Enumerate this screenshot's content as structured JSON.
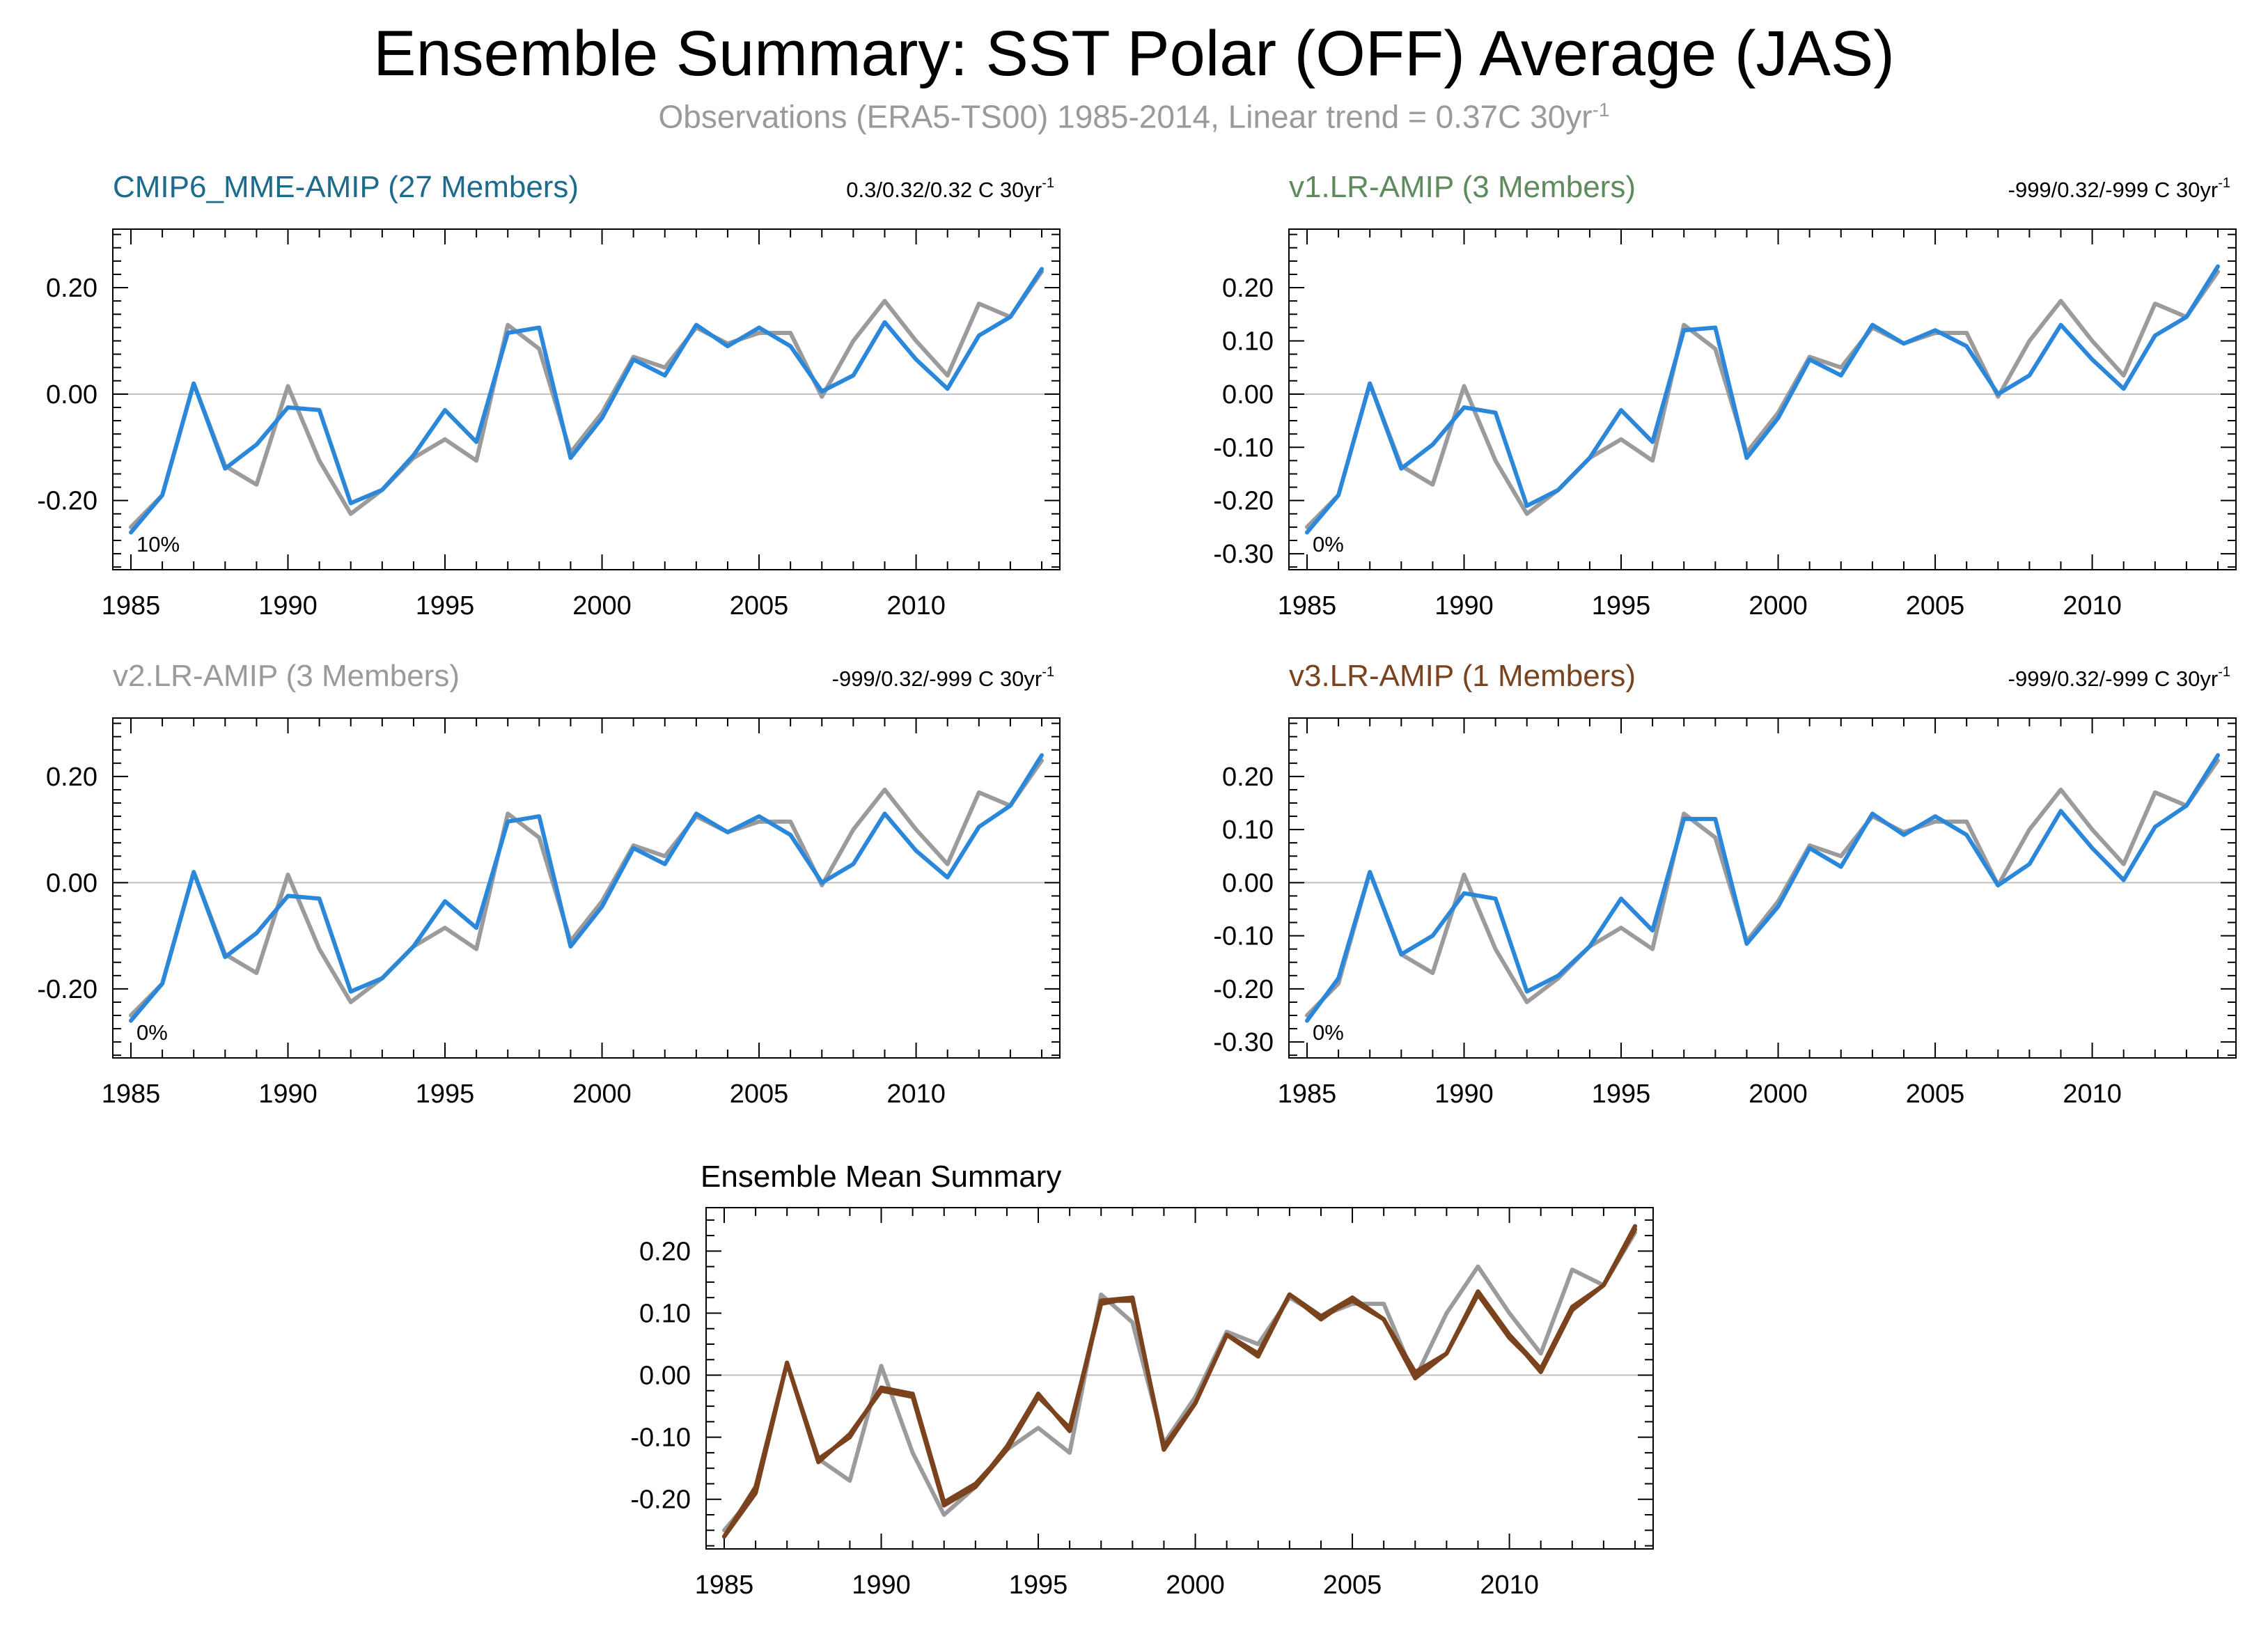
{
  "title": "Ensemble Summary: SST Polar (OFF) Average (JAS)",
  "subtitle": "Observations (ERA5-TS00) 1985-2014, Linear trend = 0.37C 30yr",
  "subtitle_sup": "-1",
  "colors": {
    "observations": "#9b9b9b",
    "model": "#2b87da",
    "ensemble_mean": "#7a431e",
    "zero_line": "#c0c0c0",
    "frame": "#000000"
  },
  "chart_data": [
    {
      "type": "line",
      "title": "CMIP6_MME-AMIP (27 Members)",
      "title_color": "#1d6b8c",
      "trend_text": "0.3/0.32/0.32 C 30yr",
      "trend_sup": "-1",
      "pct": "10%",
      "ylim": [
        -0.33,
        0.31
      ],
      "yticks": [
        -0.2,
        0.0,
        0.2
      ],
      "ytick_labels": [
        "-0.20",
        "0.00",
        "0.20"
      ],
      "xlim": [
        1985,
        2014
      ],
      "xticks": [
        1985,
        1990,
        1995,
        2000,
        2005,
        2010
      ],
      "grid": false,
      "x": [
        1985,
        1986,
        1987,
        1988,
        1989,
        1990,
        1991,
        1992,
        1993,
        1994,
        1995,
        1996,
        1997,
        1998,
        1999,
        2000,
        2001,
        2002,
        2003,
        2004,
        2005,
        2006,
        2007,
        2008,
        2009,
        2010,
        2011,
        2012,
        2013,
        2014
      ],
      "series": [
        {
          "name": "Observations (ERA5-TS00)",
          "role": "obs",
          "values": [
            -0.25,
            -0.19,
            0.02,
            -0.135,
            -0.17,
            0.015,
            -0.125,
            -0.225,
            -0.18,
            -0.12,
            -0.085,
            -0.125,
            0.13,
            0.085,
            -0.11,
            -0.035,
            0.07,
            0.05,
            0.125,
            0.095,
            0.115,
            0.115,
            -0.005,
            0.1,
            0.175,
            0.1,
            0.035,
            0.17,
            0.145,
            0.23
          ]
        },
        {
          "name": "CMIP6_MME-AMIP",
          "role": "model",
          "values": [
            -0.26,
            -0.19,
            0.02,
            -0.14,
            -0.095,
            -0.025,
            -0.03,
            -0.205,
            -0.18,
            -0.115,
            -0.03,
            -0.09,
            0.115,
            0.125,
            -0.12,
            -0.045,
            0.065,
            0.035,
            0.13,
            0.09,
            0.125,
            0.09,
            0.005,
            0.035,
            0.135,
            0.065,
            0.01,
            0.11,
            0.145,
            0.235
          ]
        }
      ]
    },
    {
      "type": "line",
      "title": "v1.LR-AMIP (3 Members)",
      "title_color": "#5e8a5e",
      "trend_text": "-999/0.32/-999 C 30yr",
      "trend_sup": "-1",
      "pct": "0%",
      "ylim": [
        -0.33,
        0.31
      ],
      "yticks": [
        -0.3,
        -0.2,
        -0.1,
        0.0,
        0.1,
        0.2
      ],
      "ytick_labels": [
        "-0.30",
        "-0.20",
        "-0.10",
        "0.00",
        "0.10",
        "0.20"
      ],
      "xlim": [
        1985,
        2014
      ],
      "xticks": [
        1985,
        1990,
        1995,
        2000,
        2005,
        2010
      ],
      "grid": false,
      "x": [
        1985,
        1986,
        1987,
        1988,
        1989,
        1990,
        1991,
        1992,
        1993,
        1994,
        1995,
        1996,
        1997,
        1998,
        1999,
        2000,
        2001,
        2002,
        2003,
        2004,
        2005,
        2006,
        2007,
        2008,
        2009,
        2010,
        2011,
        2012,
        2013,
        2014
      ],
      "series": [
        {
          "name": "Observations (ERA5-TS00)",
          "role": "obs",
          "values": [
            -0.25,
            -0.19,
            0.02,
            -0.135,
            -0.17,
            0.015,
            -0.125,
            -0.225,
            -0.18,
            -0.12,
            -0.085,
            -0.125,
            0.13,
            0.085,
            -0.11,
            -0.035,
            0.07,
            0.05,
            0.125,
            0.095,
            0.115,
            0.115,
            -0.005,
            0.1,
            0.175,
            0.1,
            0.035,
            0.17,
            0.145,
            0.23
          ]
        },
        {
          "name": "v1.LR-AMIP",
          "role": "model",
          "values": [
            -0.26,
            -0.19,
            0.02,
            -0.14,
            -0.095,
            -0.025,
            -0.035,
            -0.21,
            -0.18,
            -0.12,
            -0.03,
            -0.09,
            0.12,
            0.125,
            -0.12,
            -0.045,
            0.065,
            0.035,
            0.13,
            0.095,
            0.12,
            0.09,
            0.0,
            0.035,
            0.13,
            0.065,
            0.01,
            0.11,
            0.145,
            0.24
          ]
        }
      ]
    },
    {
      "type": "line",
      "title": "v2.LR-AMIP (3 Members)",
      "title_color": "#9a9a9a",
      "trend_text": "-999/0.32/-999 C 30yr",
      "trend_sup": "-1",
      "pct": "0%",
      "ylim": [
        -0.33,
        0.31
      ],
      "yticks": [
        -0.2,
        0.0,
        0.2
      ],
      "ytick_labels": [
        "-0.20",
        "0.00",
        "0.20"
      ],
      "xlim": [
        1985,
        2014
      ],
      "xticks": [
        1985,
        1990,
        1995,
        2000,
        2005,
        2010
      ],
      "grid": false,
      "x": [
        1985,
        1986,
        1987,
        1988,
        1989,
        1990,
        1991,
        1992,
        1993,
        1994,
        1995,
        1996,
        1997,
        1998,
        1999,
        2000,
        2001,
        2002,
        2003,
        2004,
        2005,
        2006,
        2007,
        2008,
        2009,
        2010,
        2011,
        2012,
        2013,
        2014
      ],
      "series": [
        {
          "name": "Observations (ERA5-TS00)",
          "role": "obs",
          "values": [
            -0.25,
            -0.19,
            0.02,
            -0.135,
            -0.17,
            0.015,
            -0.125,
            -0.225,
            -0.18,
            -0.12,
            -0.085,
            -0.125,
            0.13,
            0.085,
            -0.11,
            -0.035,
            0.07,
            0.05,
            0.125,
            0.095,
            0.115,
            0.115,
            -0.005,
            0.1,
            0.175,
            0.1,
            0.035,
            0.17,
            0.145,
            0.23
          ]
        },
        {
          "name": "v2.LR-AMIP",
          "role": "model",
          "values": [
            -0.26,
            -0.19,
            0.02,
            -0.14,
            -0.095,
            -0.025,
            -0.03,
            -0.205,
            -0.18,
            -0.12,
            -0.035,
            -0.085,
            0.115,
            0.125,
            -0.12,
            -0.045,
            0.065,
            0.035,
            0.13,
            0.095,
            0.125,
            0.09,
            0.0,
            0.035,
            0.13,
            0.06,
            0.01,
            0.105,
            0.145,
            0.24
          ]
        }
      ]
    },
    {
      "type": "line",
      "title": "v3.LR-AMIP (1 Members)",
      "title_color": "#7a431e",
      "trend_text": "-999/0.32/-999 C 30yr",
      "trend_sup": "-1",
      "pct": "0%",
      "ylim": [
        -0.33,
        0.31
      ],
      "yticks": [
        -0.3,
        -0.2,
        -0.1,
        0.0,
        0.1,
        0.2
      ],
      "ytick_labels": [
        "-0.30",
        "-0.20",
        "-0.10",
        "0.00",
        "0.10",
        "0.20"
      ],
      "xlim": [
        1985,
        2014
      ],
      "xticks": [
        1985,
        1990,
        1995,
        2000,
        2005,
        2010
      ],
      "grid": false,
      "x": [
        1985,
        1986,
        1987,
        1988,
        1989,
        1990,
        1991,
        1992,
        1993,
        1994,
        1995,
        1996,
        1997,
        1998,
        1999,
        2000,
        2001,
        2002,
        2003,
        2004,
        2005,
        2006,
        2007,
        2008,
        2009,
        2010,
        2011,
        2012,
        2013,
        2014
      ],
      "series": [
        {
          "name": "Observations (ERA5-TS00)",
          "role": "obs",
          "values": [
            -0.25,
            -0.19,
            0.02,
            -0.135,
            -0.17,
            0.015,
            -0.125,
            -0.225,
            -0.18,
            -0.12,
            -0.085,
            -0.125,
            0.13,
            0.085,
            -0.11,
            -0.035,
            0.07,
            0.05,
            0.125,
            0.095,
            0.115,
            0.115,
            -0.005,
            0.1,
            0.175,
            0.1,
            0.035,
            0.17,
            0.145,
            0.23
          ]
        },
        {
          "name": "v3.LR-AMIP",
          "role": "model",
          "values": [
            -0.26,
            -0.18,
            0.02,
            -0.135,
            -0.1,
            -0.02,
            -0.03,
            -0.205,
            -0.175,
            -0.12,
            -0.03,
            -0.09,
            0.12,
            0.12,
            -0.115,
            -0.045,
            0.065,
            0.03,
            0.13,
            0.09,
            0.125,
            0.09,
            -0.005,
            0.035,
            0.135,
            0.065,
            0.005,
            0.105,
            0.145,
            0.24
          ]
        }
      ]
    },
    {
      "type": "line",
      "title": "Ensemble Mean Summary",
      "title_color": "#000000",
      "trend_text": "",
      "trend_sup": "",
      "pct": "",
      "ylim": [
        -0.28,
        0.27
      ],
      "yticks": [
        -0.2,
        -0.1,
        0.0,
        0.1,
        0.2
      ],
      "ytick_labels": [
        "-0.20",
        "-0.10",
        "0.00",
        "0.10",
        "0.20"
      ],
      "xlim": [
        1985,
        2014
      ],
      "xticks": [
        1985,
        1990,
        1995,
        2000,
        2005,
        2010
      ],
      "grid": false,
      "x": [
        1985,
        1986,
        1987,
        1988,
        1989,
        1990,
        1991,
        1992,
        1993,
        1994,
        1995,
        1996,
        1997,
        1998,
        1999,
        2000,
        2001,
        2002,
        2003,
        2004,
        2005,
        2006,
        2007,
        2008,
        2009,
        2010,
        2011,
        2012,
        2013,
        2014
      ],
      "series": [
        {
          "name": "Observations (ERA5-TS00)",
          "role": "obs",
          "values": [
            -0.25,
            -0.19,
            0.02,
            -0.135,
            -0.17,
            0.015,
            -0.125,
            -0.225,
            -0.18,
            -0.12,
            -0.085,
            -0.125,
            0.13,
            0.085,
            -0.11,
            -0.035,
            0.07,
            0.05,
            0.125,
            0.095,
            0.115,
            0.115,
            -0.005,
            0.1,
            0.175,
            0.1,
            0.035,
            0.17,
            0.145,
            0.23
          ]
        },
        {
          "name": "CMIP6_MME-AMIP",
          "role": "model",
          "values": [
            -0.26,
            -0.19,
            0.02,
            -0.14,
            -0.095,
            -0.025,
            -0.03,
            -0.205,
            -0.18,
            -0.115,
            -0.03,
            -0.09,
            0.115,
            0.125,
            -0.12,
            -0.045,
            0.065,
            0.035,
            0.13,
            0.09,
            0.125,
            0.09,
            0.005,
            0.035,
            0.135,
            0.065,
            0.01,
            0.11,
            0.145,
            0.235
          ]
        },
        {
          "name": "v1.LR-AMIP",
          "role": "model",
          "values": [
            -0.26,
            -0.19,
            0.02,
            -0.14,
            -0.095,
            -0.025,
            -0.035,
            -0.21,
            -0.18,
            -0.12,
            -0.03,
            -0.09,
            0.12,
            0.125,
            -0.12,
            -0.045,
            0.065,
            0.035,
            0.13,
            0.095,
            0.12,
            0.09,
            0.0,
            0.035,
            0.13,
            0.065,
            0.01,
            0.11,
            0.145,
            0.24
          ]
        },
        {
          "name": "v2.LR-AMIP",
          "role": "model",
          "values": [
            -0.26,
            -0.19,
            0.02,
            -0.14,
            -0.095,
            -0.025,
            -0.03,
            -0.205,
            -0.18,
            -0.12,
            -0.035,
            -0.085,
            0.115,
            0.125,
            -0.12,
            -0.045,
            0.065,
            0.035,
            0.13,
            0.095,
            0.125,
            0.09,
            0.0,
            0.035,
            0.13,
            0.06,
            0.01,
            0.105,
            0.145,
            0.24
          ]
        },
        {
          "name": "v3.LR-AMIP",
          "role": "ensemble_mean",
          "values": [
            -0.26,
            -0.18,
            0.02,
            -0.135,
            -0.1,
            -0.02,
            -0.03,
            -0.205,
            -0.175,
            -0.12,
            -0.03,
            -0.09,
            0.12,
            0.12,
            -0.115,
            -0.045,
            0.065,
            0.03,
            0.13,
            0.09,
            0.125,
            0.09,
            -0.005,
            0.035,
            0.135,
            0.065,
            0.005,
            0.105,
            0.145,
            0.24
          ]
        }
      ]
    }
  ]
}
